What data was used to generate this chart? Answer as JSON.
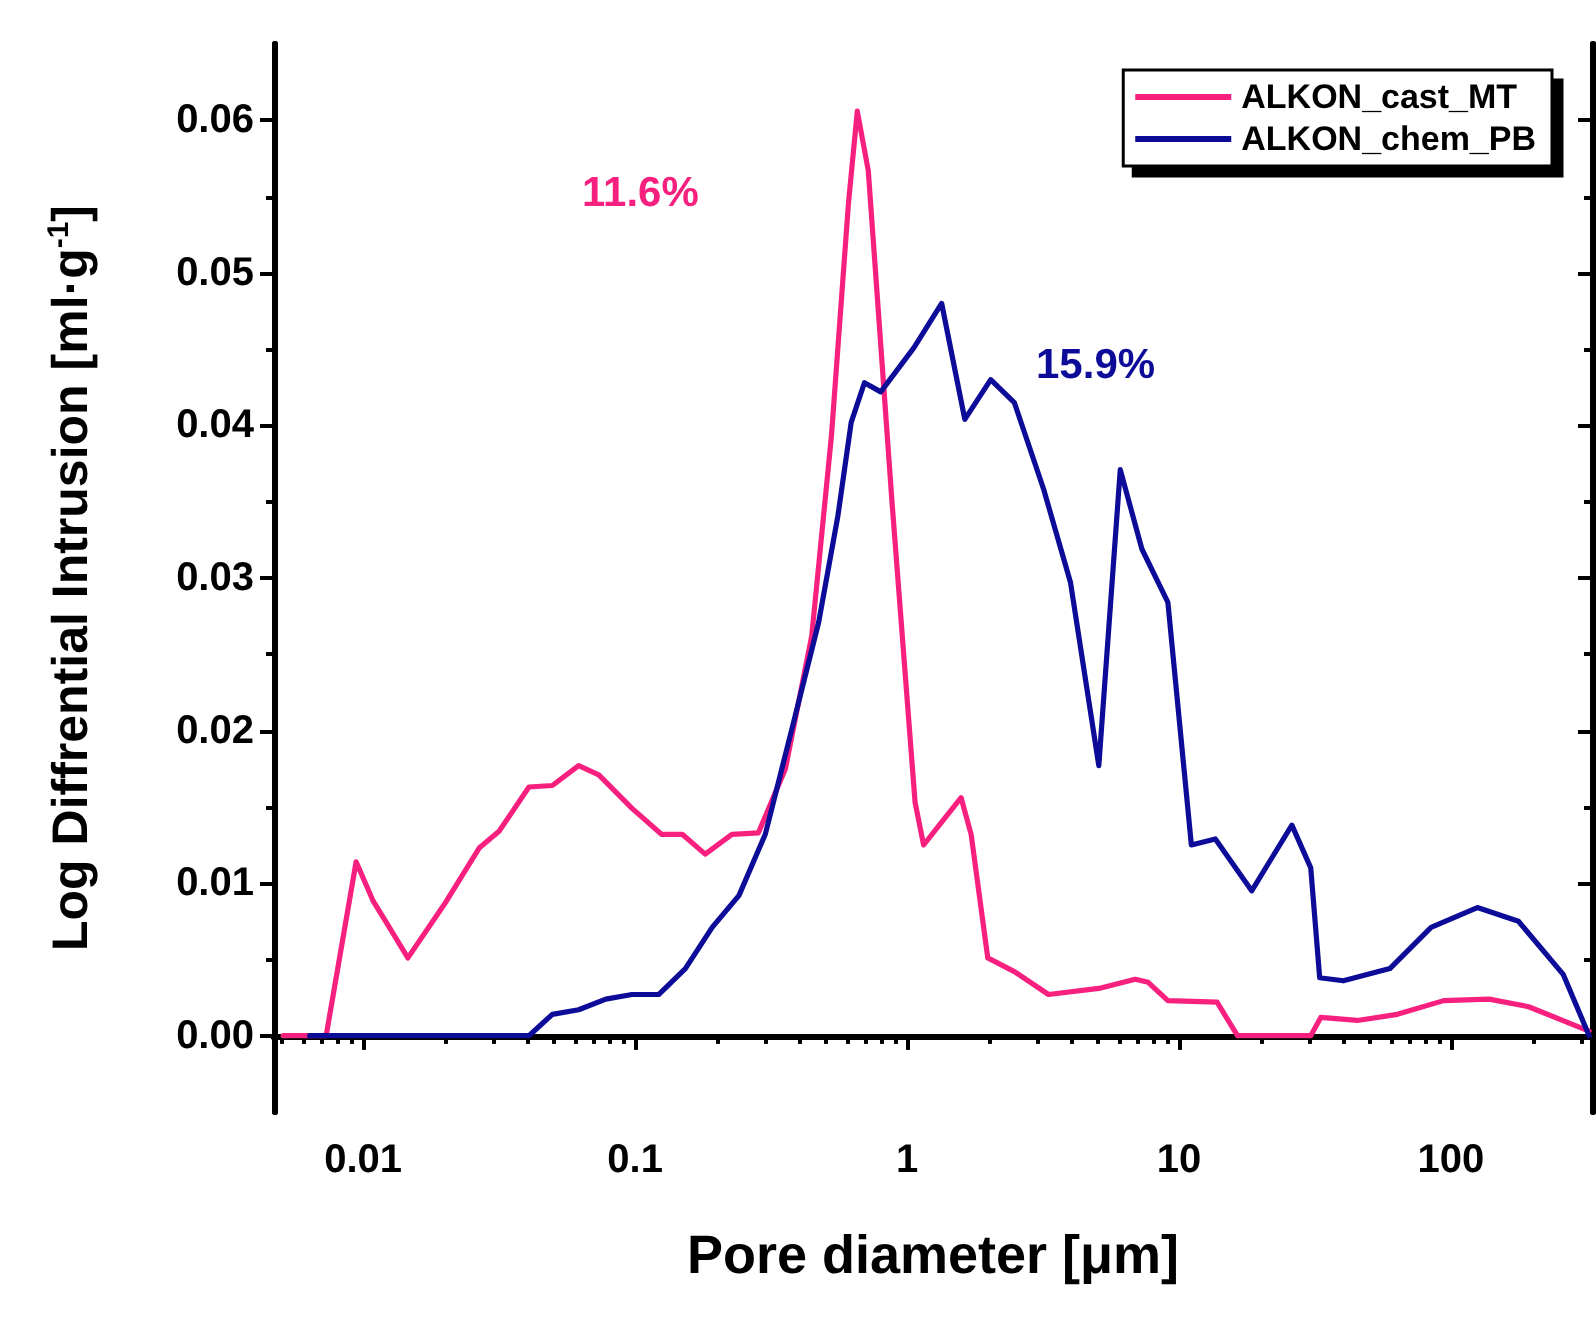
{
  "chart_data": {
    "type": "line",
    "xlabel": "Pore diameter [μm]",
    "ylabel": "Log Diffrential Intrusion [ml·g$^{-1}$]",
    "log": "x",
    "xlim": [
      0.0047,
      330
    ],
    "xticks": [
      0.01,
      0.1,
      1,
      10,
      100
    ],
    "ylim": [
      -0.005,
      0.065
    ],
    "yticks": [
      {
        "value": 0,
        "label": "0.00"
      },
      {
        "value": 0.01,
        "label": "0.01"
      },
      {
        "value": 0.02,
        "label": "0.02"
      },
      {
        "value": 0.03,
        "label": "0.03"
      },
      {
        "value": 0.04,
        "label": "0.04"
      },
      {
        "value": 0.05,
        "label": "0.05"
      },
      {
        "value": 0.06,
        "label": "0.06"
      }
    ],
    "grid": false,
    "legend": "top right",
    "annotations": [
      "11.6%",
      "15.9%"
    ],
    "series": [
      {
        "name": "ALKON_cast_MT",
        "color": "#f7207f",
        "x": [
          0.00508,
          0.00731,
          0.00942,
          0.0109,
          0.0121,
          0.0146,
          0.0202,
          0.0267,
          0.0316,
          0.0407,
          0.0496,
          0.062,
          0.0735,
          0.0974,
          0.125,
          0.149,
          0.181,
          0.227,
          0.284,
          0.357,
          0.446,
          0.527,
          0.609,
          0.656,
          0.72,
          0.88,
          1.07,
          1.15,
          1.34,
          1.58,
          1.72,
          1.98,
          2.48,
          3.31,
          5.07,
          6.9,
          7.7,
          9.1,
          13.8,
          16.4,
          30.5,
          33.2,
          45.3,
          63.5,
          94,
          138,
          193,
          322
        ],
        "values": [
          0,
          0,
          0.0114,
          0.0088,
          0.0075,
          0.0051,
          0.0088,
          0.0123,
          0.0134,
          0.0163,
          0.0164,
          0.0177,
          0.0171,
          0.0149,
          0.0132,
          0.0132,
          0.0119,
          0.0132,
          0.0133,
          0.0175,
          0.0262,
          0.0393,
          0.0546,
          0.0606,
          0.0567,
          0.035,
          0.0153,
          0.0125,
          0.014,
          0.0156,
          0.0132,
          0.0051,
          0.0042,
          0.0027,
          0.0031,
          0.0037,
          0.0035,
          0.0023,
          0.0022,
          0,
          0,
          0.0012,
          0.001,
          0.0014,
          0.0023,
          0.0024,
          0.0019,
          0.0003
        ]
      },
      {
        "name": "ALKON_chem_PB",
        "color": "#0c0c99",
        "x": [
          0.00636,
          0.0407,
          0.0496,
          0.062,
          0.078,
          0.0974,
          0.122,
          0.153,
          0.192,
          0.241,
          0.301,
          0.377,
          0.473,
          0.557,
          0.623,
          0.697,
          0.8,
          1.06,
          1.34,
          1.63,
          2.03,
          2.48,
          3.18,
          3.99,
          5.07,
          6.08,
          7.3,
          9.1,
          11.1,
          13.6,
          18.5,
          26,
          30.5,
          32.9,
          40.2,
          59.6,
          84.5,
          125,
          177,
          259,
          322
        ],
        "values": [
          0,
          0,
          0.0014,
          0.0017,
          0.0024,
          0.0027,
          0.0027,
          0.0044,
          0.0071,
          0.0092,
          0.0132,
          0.0201,
          0.0271,
          0.0341,
          0.0402,
          0.0428,
          0.0422,
          0.0451,
          0.048,
          0.0404,
          0.043,
          0.0415,
          0.0358,
          0.0297,
          0.0177,
          0.0371,
          0.0319,
          0.0284,
          0.0125,
          0.0129,
          0.0095,
          0.0138,
          0.011,
          0.0038,
          0.0036,
          0.0044,
          0.0071,
          0.0084,
          0.0075,
          0.004,
          0
        ]
      }
    ]
  }
}
